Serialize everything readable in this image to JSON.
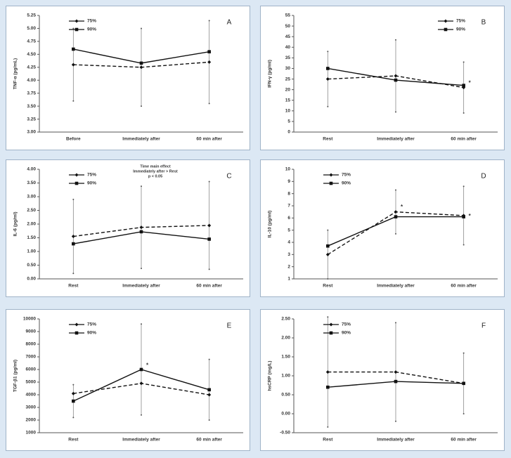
{
  "chart_data": [
    {
      "type": "line",
      "panel_label": "A",
      "ylabel": "TNF-α (pg/mL)",
      "legend": "upper left",
      "categories": [
        "Before",
        "Immediately after",
        "60 min after"
      ],
      "ylim": [
        3.0,
        5.25
      ],
      "yticks": [
        {
          "value": 3.0,
          "label": "3.00"
        },
        {
          "value": 3.25,
          "label": "3.25"
        },
        {
          "value": 3.5,
          "label": "3.50"
        },
        {
          "value": 3.75,
          "label": "3.75"
        },
        {
          "value": 4.0,
          "label": "4.00"
        },
        {
          "value": 4.25,
          "label": "4.25"
        },
        {
          "value": 4.5,
          "label": "4.50"
        },
        {
          "value": 4.75,
          "label": "4.75"
        },
        {
          "value": 5.0,
          "label": "5.00"
        },
        {
          "value": 5.25,
          "label": "5.25"
        }
      ],
      "series": [
        {
          "name": "75%",
          "color": "#111111",
          "dash": true,
          "values": [
            4.3,
            4.25,
            4.35
          ],
          "errors": [
            0.7,
            0.75,
            0.8
          ]
        },
        {
          "name": "90%",
          "color": "#111111",
          "dash": false,
          "values": [
            4.6,
            4.33,
            4.55
          ]
        }
      ]
    },
    {
      "type": "line",
      "panel_label": "B",
      "ylabel": "IFN-γ (pg/ml)",
      "legend": "upper right",
      "categories": [
        "Rest",
        "Immediately after",
        "60 min after"
      ],
      "ylim": [
        0,
        55
      ],
      "yticks": [
        0,
        5,
        10,
        15,
        20,
        25,
        30,
        35,
        40,
        45,
        50,
        55
      ],
      "series": [
        {
          "name": "75%",
          "color": "#111111",
          "dash": true,
          "values": [
            25,
            26.5,
            21
          ],
          "errors": [
            13,
            17,
            12
          ]
        },
        {
          "name": "90%",
          "color": "#111111",
          "dash": false,
          "values": [
            30,
            24.5,
            22
          ]
        }
      ],
      "annotations": [
        {
          "text": "*",
          "category": 2,
          "y": 23
        }
      ]
    },
    {
      "type": "line",
      "panel_label": "C",
      "ylabel": "IL-6 (pg/ml)",
      "legend": "upper left",
      "categories": [
        "Rest",
        "Immediately after",
        "60 min after"
      ],
      "ylim": [
        0,
        4.0
      ],
      "yticks": [
        {
          "value": 0,
          "label": "0.00"
        },
        {
          "value": 0.5,
          "label": "0.50"
        },
        {
          "value": 1.0,
          "label": "1.00"
        },
        {
          "value": 1.5,
          "label": "1.50"
        },
        {
          "value": 2.0,
          "label": "2.00"
        },
        {
          "value": 2.5,
          "label": "2.50"
        },
        {
          "value": 3.0,
          "label": "3.00"
        },
        {
          "value": 3.5,
          "label": "3.50"
        },
        {
          "value": 4.0,
          "label": "4.00"
        }
      ],
      "series": [
        {
          "name": "75%",
          "color": "#111111",
          "dash": true,
          "values": [
            1.55,
            1.88,
            1.95
          ],
          "errors": [
            1.35,
            1.5,
            1.6
          ]
        },
        {
          "name": "90%",
          "color": "#111111",
          "dash": false,
          "values": [
            1.28,
            1.72,
            1.45
          ]
        }
      ],
      "note": [
        "Time main effect",
        "Immediately after > Rest",
        "p < 0.05"
      ]
    },
    {
      "type": "line",
      "panel_label": "D",
      "ylabel": "IL-10 (pg/ml)",
      "legend": "upper left",
      "categories": [
        "Rest",
        "Immediately after",
        "60 min after"
      ],
      "ylim": [
        1,
        10
      ],
      "yticks": [
        1,
        2,
        3,
        4,
        5,
        6,
        7,
        8,
        9,
        10
      ],
      "series": [
        {
          "name": "75%",
          "color": "#111111",
          "dash": true,
          "values": [
            3.0,
            6.5,
            6.2
          ],
          "errors": [
            2.0,
            1.8,
            2.4
          ]
        },
        {
          "name": "90%",
          "color": "#111111",
          "dash": false,
          "values": [
            3.7,
            6.1,
            6.1
          ]
        }
      ],
      "annotations": [
        {
          "text": "*",
          "category": 1,
          "y": 6.9
        },
        {
          "text": "*",
          "category": 2,
          "y": 6.15
        }
      ]
    },
    {
      "type": "line",
      "panel_label": "E",
      "ylabel": "TGF-β1 (pg/ml)",
      "legend": "upper left",
      "categories": [
        "Rest",
        "Immediately after",
        "60 min after"
      ],
      "ylim": [
        1000,
        10000
      ],
      "yticks": [
        1000,
        2000,
        3000,
        4000,
        5000,
        6000,
        7000,
        8000,
        9000,
        10000
      ],
      "series": [
        {
          "name": "75%",
          "color": "#111111",
          "dash": true,
          "values": [
            4100,
            4900,
            4000
          ]
        },
        {
          "name": "90%",
          "color": "#111111",
          "dash": false,
          "values": [
            3500,
            6000,
            4400
          ],
          "errors": [
            1300,
            3600,
            2400
          ]
        }
      ],
      "annotations": [
        {
          "text": "*",
          "category": 1,
          "y": 6300
        }
      ]
    },
    {
      "type": "line",
      "panel_label": "F",
      "ylabel": "hsCRP (mg/L)",
      "legend": "upper left",
      "categories": [
        "Rest",
        "Immediately after",
        "60 min after"
      ],
      "ylim": [
        -0.5,
        2.5
      ],
      "yticks": [
        {
          "value": -0.5,
          "label": "-0.50"
        },
        {
          "value": 0,
          "label": "0.00"
        },
        {
          "value": 0.5,
          "label": "0.50"
        },
        {
          "value": 1.0,
          "label": "1.00"
        },
        {
          "value": 1.5,
          "label": "1.50"
        },
        {
          "value": 2.0,
          "label": "2.00"
        },
        {
          "value": 2.5,
          "label": "2.50"
        }
      ],
      "series": [
        {
          "name": "75%",
          "color": "#111111",
          "dash": true,
          "values": [
            1.1,
            1.1,
            0.8
          ],
          "errors": [
            1.45,
            1.3,
            0.8
          ]
        },
        {
          "name": "90%",
          "color": "#111111",
          "dash": false,
          "values": [
            0.7,
            0.85,
            0.8
          ]
        }
      ]
    }
  ]
}
